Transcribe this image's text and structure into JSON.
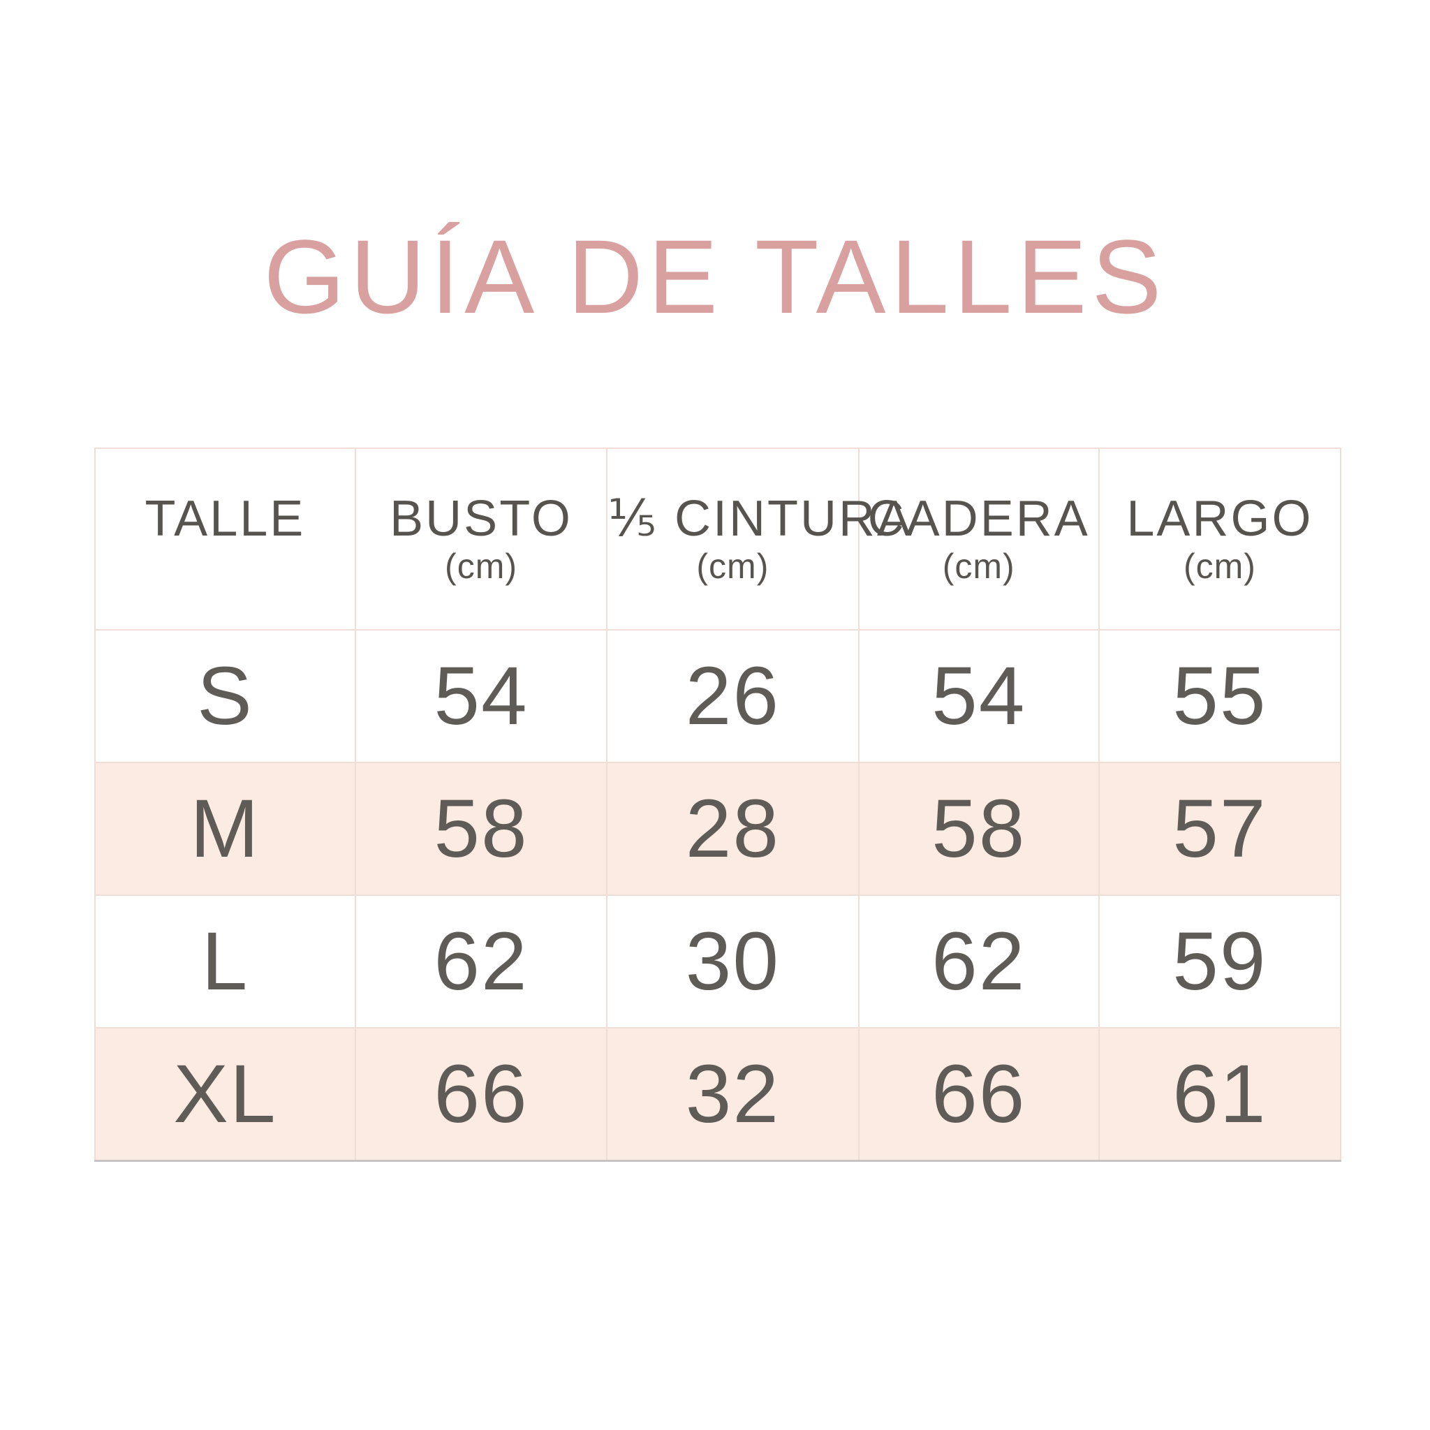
{
  "colors": {
    "title_pink": "#d9a0a0",
    "stripe_peach": "#fcebe2",
    "grid_border": "#efded5",
    "bottom_border_gray": "#c6c3c4",
    "text_gray": "#5f5c57",
    "background": "#ffffff"
  },
  "chart_data": {
    "type": "table",
    "title": "GUÍA DE TALLES",
    "columns": [
      {
        "label": "TALLE",
        "unit": ""
      },
      {
        "label": "BUSTO",
        "unit": "(cm)"
      },
      {
        "label": "⅕ CINTURA",
        "unit": "(cm)"
      },
      {
        "label": "CADERA",
        "unit": "(cm)"
      },
      {
        "label": "LARGO",
        "unit": "(cm)"
      }
    ],
    "rows": [
      {
        "cells": [
          "S",
          "54",
          "26",
          "54",
          "55"
        ],
        "striped": false
      },
      {
        "cells": [
          "M",
          "58",
          "28",
          "58",
          "57"
        ],
        "striped": true
      },
      {
        "cells": [
          "L",
          "62",
          "30",
          "62",
          "59"
        ],
        "striped": false
      },
      {
        "cells": [
          "XL",
          "66",
          "32",
          "66",
          "61"
        ],
        "striped": true
      }
    ]
  }
}
